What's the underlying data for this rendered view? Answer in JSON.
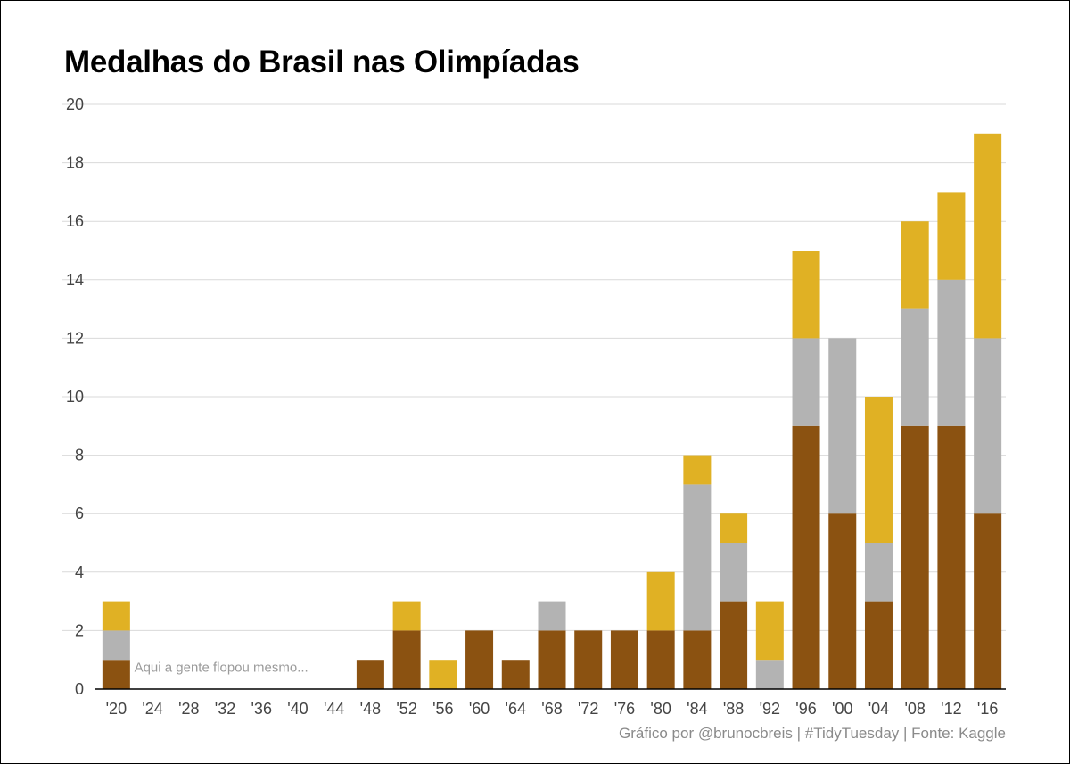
{
  "title": "Medalhas do Brasil nas Olimpíadas",
  "caption": "Gráfico por @brunocbreis | #TidyTuesday | Fonte: Kaggle",
  "chart_data": {
    "type": "bar",
    "stacked": true,
    "title": "Medalhas do Brasil nas Olimpíadas",
    "xlabel": "",
    "ylabel": "",
    "ylim": [
      0,
      20
    ],
    "yticks": [
      "0",
      "2",
      "4",
      "6",
      "8",
      "10",
      "12",
      "14",
      "16",
      "18",
      "20"
    ],
    "grid": "horizontal",
    "categories": [
      "'20",
      "'24",
      "'28",
      "'32",
      "'36",
      "'40",
      "'44",
      "'48",
      "'52",
      "'56",
      "'60",
      "'64",
      "'68",
      "'72",
      "'76",
      "'80",
      "'84",
      "'88",
      "'92",
      "'96",
      "'00",
      "'04",
      "'08",
      "'12",
      "'16"
    ],
    "series": [
      {
        "color": "#8b5211",
        "values": [
          1,
          0,
          0,
          0,
          0,
          0,
          0,
          1,
          2,
          0,
          2,
          1,
          2,
          2,
          2,
          2,
          2,
          3,
          0,
          9,
          6,
          3,
          9,
          9,
          6
        ]
      },
      {
        "color": "#b3b3b3",
        "values": [
          1,
          0,
          0,
          0,
          0,
          0,
          0,
          0,
          0,
          0,
          0,
          0,
          1,
          0,
          0,
          0,
          5,
          2,
          1,
          3,
          6,
          2,
          4,
          5,
          6
        ]
      },
      {
        "color": "#e0b124",
        "values": [
          1,
          0,
          0,
          0,
          0,
          0,
          0,
          0,
          1,
          1,
          0,
          0,
          0,
          0,
          0,
          2,
          1,
          1,
          2,
          3,
          0,
          5,
          3,
          3,
          7
        ]
      }
    ],
    "annotation": {
      "text": "Aqui a gente flopou mesmo...",
      "x": "'24",
      "y": 0.6
    },
    "axis_color": "#000000",
    "grid_color": "#d9d9d9",
    "tick_label_color": "#444444"
  }
}
